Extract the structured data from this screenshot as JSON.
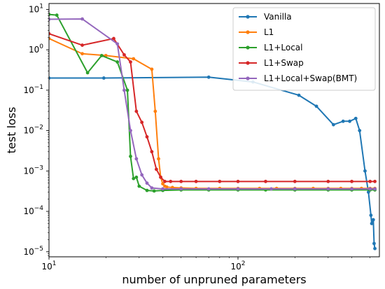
{
  "chart_data": {
    "type": "line",
    "xlabel": "number of unpruned parameters",
    "ylabel": "test loss",
    "xscale": "log",
    "yscale": "log",
    "xlim": [
      10,
      560
    ],
    "ylim": [
      7.5e-06,
      14
    ],
    "x_ticks": [
      {
        "value": 10,
        "base": "10",
        "exp": "1"
      },
      {
        "value": 100,
        "base": "10",
        "exp": "2"
      }
    ],
    "y_ticks": [
      {
        "value": 1e-05,
        "base": "10",
        "exp": "−5"
      },
      {
        "value": 0.0001,
        "base": "10",
        "exp": "−4"
      },
      {
        "value": 0.001,
        "base": "10",
        "exp": "−3"
      },
      {
        "value": 0.01,
        "base": "10",
        "exp": "−2"
      },
      {
        "value": 0.1,
        "base": "10",
        "exp": "−1"
      },
      {
        "value": 1,
        "base": "10",
        "exp": "0"
      },
      {
        "value": 10,
        "base": "10",
        "exp": "1"
      }
    ],
    "grid": false,
    "legend_position": "top-right",
    "series": [
      {
        "name": "Vanilla",
        "color": "#1f77b4",
        "points": [
          [
            10,
            0.2
          ],
          [
            19.5,
            0.2
          ],
          [
            70,
            0.21
          ],
          [
            120,
            0.16
          ],
          [
            210,
            0.075
          ],
          [
            260,
            0.04
          ],
          [
            320,
            0.014
          ],
          [
            360,
            0.017
          ],
          [
            390,
            0.017
          ],
          [
            420,
            0.02
          ],
          [
            440,
            0.01
          ],
          [
            470,
            0.001
          ],
          [
            490,
            0.0003
          ],
          [
            505,
            8e-05
          ],
          [
            510,
            5e-05
          ],
          [
            515,
            6e-05
          ],
          [
            520,
            6.2e-05
          ],
          [
            525,
            1.6e-05
          ],
          [
            530,
            1.2e-05
          ]
        ]
      },
      {
        "name": "L1",
        "color": "#ff7f0e",
        "points": [
          [
            10,
            1.9
          ],
          [
            15,
            0.8
          ],
          [
            20,
            0.72
          ],
          [
            28,
            0.6
          ],
          [
            35,
            0.33
          ],
          [
            36.5,
            0.03
          ],
          [
            38,
            0.002
          ],
          [
            39,
            0.0007
          ],
          [
            40,
            0.00048
          ],
          [
            41,
            0.00042
          ],
          [
            42,
            0.0004
          ],
          [
            45,
            0.00039
          ],
          [
            50,
            0.00038
          ],
          [
            60,
            0.00037
          ],
          [
            80,
            0.00037
          ],
          [
            100,
            0.00037
          ],
          [
            130,
            0.00037
          ],
          [
            160,
            0.00037
          ],
          [
            200,
            0.00037
          ],
          [
            250,
            0.00037
          ],
          [
            300,
            0.00037
          ],
          [
            350,
            0.00037
          ],
          [
            400,
            0.00037
          ],
          [
            450,
            0.00037
          ],
          [
            500,
            0.00037
          ],
          [
            530,
            0.00037
          ]
        ]
      },
      {
        "name": "L1+Local",
        "color": "#2ca02c",
        "points": [
          [
            10,
            7.5
          ],
          [
            11,
            7.2
          ],
          [
            16,
            0.27
          ],
          [
            19,
            0.72
          ],
          [
            23,
            0.5
          ],
          [
            26,
            0.1
          ],
          [
            27,
            0.0023
          ],
          [
            28,
            0.00065
          ],
          [
            29,
            0.0007
          ],
          [
            30,
            0.00042
          ],
          [
            33,
            0.00033
          ],
          [
            36,
            0.00032
          ],
          [
            40,
            0.00033
          ],
          [
            50,
            0.00034
          ],
          [
            70,
            0.00034
          ],
          [
            100,
            0.00034
          ],
          [
            140,
            0.00034
          ],
          [
            200,
            0.00034
          ],
          [
            300,
            0.00034
          ],
          [
            400,
            0.00034
          ],
          [
            500,
            0.00034
          ],
          [
            530,
            0.00034
          ]
        ]
      },
      {
        "name": "L1+Swap",
        "color": "#d62728",
        "points": [
          [
            10,
            2.5
          ],
          [
            15,
            1.3
          ],
          [
            22,
            1.9
          ],
          [
            25,
            0.75
          ],
          [
            27,
            0.5
          ],
          [
            29,
            0.03
          ],
          [
            31,
            0.016
          ],
          [
            33,
            0.007
          ],
          [
            35,
            0.003
          ],
          [
            37,
            0.0011
          ],
          [
            39,
            0.0007
          ],
          [
            41,
            0.00055
          ],
          [
            44,
            0.00055
          ],
          [
            50,
            0.00055
          ],
          [
            60,
            0.00055
          ],
          [
            80,
            0.00055
          ],
          [
            100,
            0.00055
          ],
          [
            140,
            0.00055
          ],
          [
            200,
            0.00055
          ],
          [
            300,
            0.00055
          ],
          [
            400,
            0.00055
          ],
          [
            500,
            0.00055
          ],
          [
            530,
            0.00055
          ]
        ]
      },
      {
        "name": "L1+Local+Swap(BMT)",
        "color": "#9467bd",
        "points": [
          [
            10,
            5.7
          ],
          [
            15,
            5.8
          ],
          [
            23,
            1.4
          ],
          [
            25,
            0.1
          ],
          [
            27,
            0.01
          ],
          [
            29,
            0.002
          ],
          [
            31,
            0.0008
          ],
          [
            33,
            0.0005
          ],
          [
            35,
            0.00038
          ],
          [
            40,
            0.00036
          ],
          [
            50,
            0.00036
          ],
          [
            70,
            0.00036
          ],
          [
            100,
            0.00036
          ],
          [
            150,
            0.00036
          ],
          [
            200,
            0.00036
          ],
          [
            300,
            0.00036
          ],
          [
            400,
            0.00036
          ],
          [
            500,
            0.00036
          ],
          [
            530,
            0.00036
          ]
        ]
      }
    ]
  }
}
